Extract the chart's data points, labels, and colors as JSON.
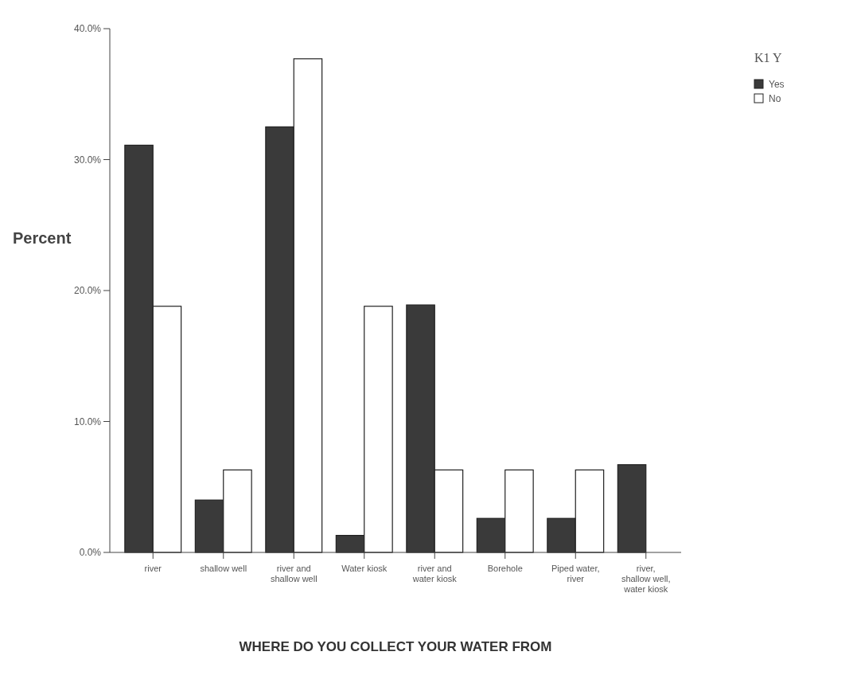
{
  "chart_data": {
    "type": "bar",
    "xlabel": "WHERE DO YOU COLLECT YOUR WATER FROM",
    "ylabel": "Percent",
    "legend_title": "K1 Y",
    "categories": [
      "river",
      "shallow well",
      "river and shallow well",
      "Water kiosk",
      "river and water kiosk",
      "Borehole",
      "Piped water, river",
      "river, shallow well, water kiosk"
    ],
    "series": [
      {
        "name": "Yes",
        "color": "#3a3a3a",
        "values": [
          31.1,
          4.0,
          32.5,
          1.3,
          18.9,
          2.6,
          2.6,
          6.7
        ]
      },
      {
        "name": "No",
        "color": "#ffffff",
        "values": [
          18.8,
          6.3,
          37.7,
          18.8,
          6.3,
          6.3,
          6.3,
          null
        ]
      }
    ],
    "ylim": [
      0,
      40
    ],
    "yticks": [
      {
        "value": 0,
        "label": "0.0%"
      },
      {
        "value": 10,
        "label": "10.0%"
      },
      {
        "value": 20,
        "label": "20.0%"
      },
      {
        "value": 30,
        "label": "30.0%"
      },
      {
        "value": 40,
        "label": "40.0%"
      }
    ],
    "grid": false,
    "legend": "top right"
  }
}
